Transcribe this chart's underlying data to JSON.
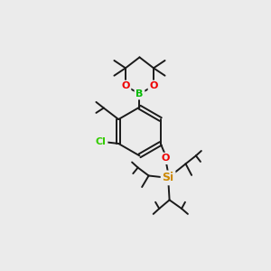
{
  "background_color": "#ebebeb",
  "bond_color": "#1a1a1a",
  "atom_colors": {
    "B": "#00bb00",
    "O": "#ee0000",
    "Cl": "#33cc00",
    "Si": "#cc8800",
    "C": "#1a1a1a"
  },
  "bond_lw": 1.4,
  "font_size_atom": 8,
  "figsize": [
    3.0,
    3.0
  ],
  "dpi": 100,
  "xlim": [
    0,
    10
  ],
  "ylim": [
    0,
    10
  ]
}
